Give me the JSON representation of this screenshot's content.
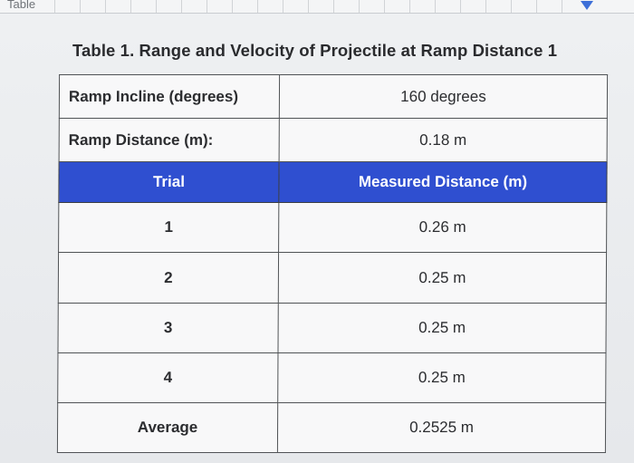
{
  "ruler": {
    "label": "Table"
  },
  "table": {
    "caption": "Table 1. Range and Velocity of Projectile at Ramp Distance 1",
    "meta": [
      {
        "label": "Ramp Incline (degrees)",
        "value": "160 degrees"
      },
      {
        "label": "Ramp Distance (m):",
        "value": "0.18 m"
      }
    ],
    "headers": [
      "Trial",
      "Measured Distance (m)"
    ],
    "rows": [
      {
        "trial": "1",
        "distance": "0.26 m"
      },
      {
        "trial": "2",
        "distance": "0.25 m"
      },
      {
        "trial": "3",
        "distance": "0.25 m"
      },
      {
        "trial": "4",
        "distance": "0.25 m"
      },
      {
        "trial": "Average",
        "distance": "0.2525 m"
      }
    ]
  },
  "colors": {
    "header_bg": "#2f4fd0",
    "header_text": "#ffffff",
    "border": "#505356",
    "ruler_marker": "#3d6fd8"
  }
}
